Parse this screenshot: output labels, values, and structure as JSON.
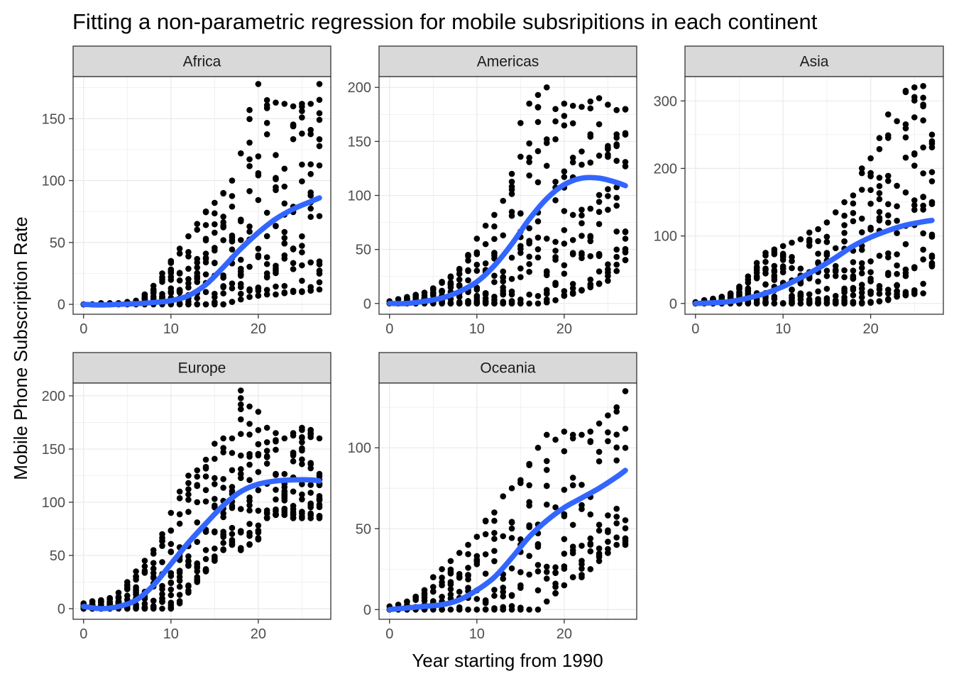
{
  "chart_data": {
    "type": "scatter",
    "title": "Fitting a non-parametric regression for mobile subsripitions in each continent",
    "xlabel": "Year starting from 1990",
    "ylabel": "Mobile Phone Subscription Rate",
    "colors": {
      "points": "#000000",
      "smooth": "#3366FF",
      "strip": "#D9D9D9",
      "grid": "#EBEBEB"
    },
    "facets": [
      {
        "name": "Africa",
        "xlim": [
          -1.2,
          28.3
        ],
        "ylim": [
          -8,
          184
        ],
        "xticks": [
          0,
          10,
          20
        ],
        "yticks": [
          0,
          50,
          100,
          150
        ],
        "smooth": [
          [
            0,
            0
          ],
          [
            2,
            -0.5
          ],
          [
            4,
            0
          ],
          [
            6,
            0.5
          ],
          [
            8,
            1.5
          ],
          [
            10,
            3
          ],
          [
            12,
            7
          ],
          [
            14,
            16
          ],
          [
            16,
            30
          ],
          [
            18,
            45
          ],
          [
            20,
            58
          ],
          [
            22,
            69
          ],
          [
            24,
            77
          ],
          [
            26,
            83
          ],
          [
            27,
            86
          ]
        ],
        "scatter": {
          "min": [
            0,
            0,
            0,
            0,
            0,
            0,
            0,
            0,
            0,
            0,
            0,
            0,
            0,
            0,
            0,
            0,
            0,
            2,
            4,
            6,
            7,
            8,
            8,
            9,
            10,
            10,
            11,
            12
          ],
          "max": [
            0,
            0,
            1,
            1,
            1,
            2,
            3,
            8,
            15,
            25,
            35,
            45,
            55,
            65,
            75,
            82,
            90,
            100,
            122,
            157,
            178,
            165,
            163,
            162,
            160,
            162,
            162,
            178
          ],
          "n": 14
        }
      },
      {
        "name": "Americas",
        "xlim": [
          -1.2,
          28.3
        ],
        "ylim": [
          -10,
          210
        ],
        "xticks": [
          0,
          10,
          20
        ],
        "yticks": [
          0,
          50,
          100,
          150,
          200
        ],
        "smooth": [
          [
            0,
            0
          ],
          [
            2,
            0
          ],
          [
            4,
            2
          ],
          [
            6,
            5
          ],
          [
            8,
            11
          ],
          [
            10,
            20
          ],
          [
            12,
            35
          ],
          [
            14,
            55
          ],
          [
            16,
            78
          ],
          [
            18,
            97
          ],
          [
            20,
            110
          ],
          [
            22,
            116
          ],
          [
            24,
            116
          ],
          [
            26,
            112
          ],
          [
            27,
            109
          ]
        ],
        "scatter": {
          "min": [
            0,
            0,
            0,
            0,
            0,
            0,
            0,
            0,
            0,
            0,
            0,
            0,
            0,
            0,
            0,
            0,
            0,
            0,
            1,
            3,
            7,
            9,
            12,
            15,
            18,
            21,
            30,
            40
          ],
          "max": [
            2,
            4,
            6,
            8,
            10,
            14,
            20,
            25,
            32,
            45,
            60,
            72,
            82,
            95,
            120,
            167,
            185,
            193,
            200,
            180,
            185,
            183,
            182,
            187,
            190,
            184,
            179,
            180
          ],
          "n": 14
        }
      },
      {
        "name": "Asia",
        "xlim": [
          -1.2,
          28.3
        ],
        "ylim": [
          -16,
          336
        ],
        "xticks": [
          0,
          10,
          20
        ],
        "yticks": [
          0,
          100,
          200,
          300
        ],
        "smooth": [
          [
            0,
            0
          ],
          [
            2,
            1
          ],
          [
            4,
            3
          ],
          [
            6,
            8
          ],
          [
            8,
            15
          ],
          [
            10,
            25
          ],
          [
            12,
            38
          ],
          [
            14,
            52
          ],
          [
            16,
            68
          ],
          [
            18,
            85
          ],
          [
            20,
            98
          ],
          [
            22,
            108
          ],
          [
            24,
            116
          ],
          [
            26,
            121
          ],
          [
            27,
            123
          ]
        ],
        "scatter": {
          "min": [
            0,
            0,
            0,
            0,
            0,
            0,
            0,
            0,
            0,
            0,
            0,
            0,
            0,
            0,
            0,
            0,
            0,
            0,
            0,
            0,
            1,
            3,
            5,
            10,
            12,
            14,
            15,
            55
          ],
          "max": [
            2,
            5,
            7,
            10,
            15,
            25,
            40,
            60,
            75,
            80,
            85,
            90,
            95,
            105,
            110,
            120,
            135,
            150,
            160,
            200,
            215,
            245,
            280,
            270,
            315,
            320,
            322,
            250
          ],
          "n": 16
        }
      },
      {
        "name": "Europe",
        "xlim": [
          -1.2,
          28.3
        ],
        "ylim": [
          -10,
          212
        ],
        "xticks": [
          0,
          10,
          20
        ],
        "yticks": [
          0,
          50,
          100,
          150,
          200
        ],
        "smooth": [
          [
            0,
            2
          ],
          [
            2,
            0
          ],
          [
            4,
            2
          ],
          [
            6,
            8
          ],
          [
            8,
            22
          ],
          [
            10,
            42
          ],
          [
            12,
            62
          ],
          [
            14,
            80
          ],
          [
            16,
            97
          ],
          [
            18,
            110
          ],
          [
            20,
            117
          ],
          [
            22,
            120
          ],
          [
            24,
            121
          ],
          [
            26,
            121
          ],
          [
            27,
            120
          ]
        ],
        "scatter": {
          "min": [
            0,
            0,
            0,
            0,
            0,
            0,
            0,
            0,
            0,
            0,
            0,
            5,
            15,
            25,
            35,
            45,
            55,
            60,
            55,
            60,
            65,
            85,
            88,
            88,
            85,
            85,
            85,
            85
          ],
          "max": [
            5,
            7,
            8,
            10,
            15,
            25,
            35,
            45,
            55,
            70,
            90,
            110,
            125,
            130,
            140,
            155,
            160,
            160,
            205,
            190,
            185,
            170,
            165,
            160,
            165,
            170,
            168,
            160
          ],
          "n": 16
        }
      },
      {
        "name": "Oceania",
        "xlim": [
          -1.2,
          28.3
        ],
        "ylim": [
          -6,
          140
        ],
        "xticks": [
          0,
          10,
          20
        ],
        "yticks": [
          0,
          50,
          100
        ],
        "smooth": [
          [
            0,
            0
          ],
          [
            2,
            1
          ],
          [
            4,
            2
          ],
          [
            6,
            3
          ],
          [
            8,
            6
          ],
          [
            10,
            12
          ],
          [
            12,
            20
          ],
          [
            14,
            32
          ],
          [
            16,
            45
          ],
          [
            18,
            55
          ],
          [
            20,
            63
          ],
          [
            22,
            69
          ],
          [
            24,
            75
          ],
          [
            26,
            82
          ],
          [
            27,
            86
          ]
        ],
        "scatter": {
          "min": [
            0,
            0,
            0,
            0,
            0,
            0,
            0,
            0,
            0,
            0,
            0,
            0,
            0,
            0,
            0,
            0,
            0,
            0,
            5,
            10,
            15,
            20,
            20,
            25,
            30,
            35,
            40,
            40
          ],
          "max": [
            2,
            3,
            5,
            8,
            12,
            20,
            25,
            30,
            35,
            40,
            45,
            55,
            60,
            70,
            75,
            80,
            90,
            100,
            108,
            105,
            110,
            108,
            108,
            110,
            115,
            120,
            125,
            135
          ],
          "n": 10
        }
      }
    ]
  }
}
